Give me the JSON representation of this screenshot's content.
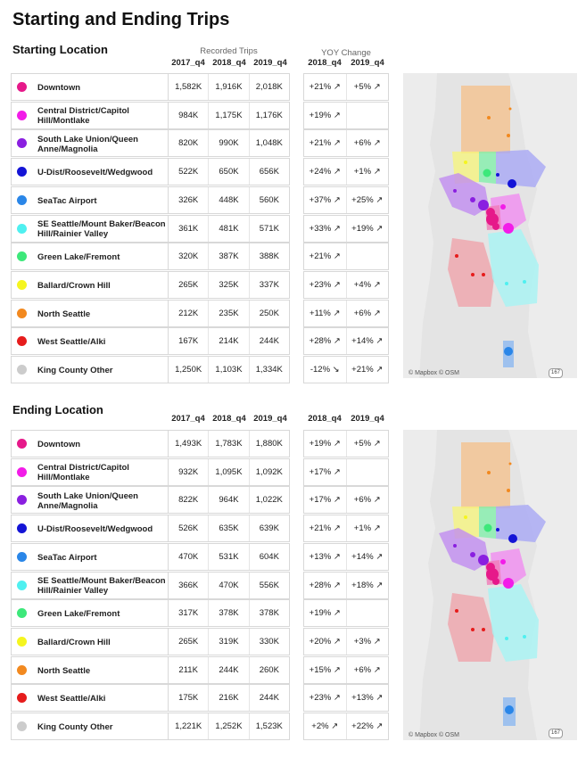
{
  "title": "Starting and Ending Trips",
  "headers": {
    "recorded": "Recorded Trips",
    "yoy": "YOY Change",
    "cols": [
      "2017_q4",
      "2018_q4",
      "2019_q4"
    ],
    "yoy_cols": [
      "2018_q4",
      "2019_q4"
    ]
  },
  "map": {
    "credit": "© Mapbox © OSM",
    "shield": "167"
  },
  "chart_data": [
    {
      "type": "table",
      "title": "Starting Location",
      "columns": [
        "2017_q4",
        "2018_q4",
        "2019_q4",
        "2018_q4",
        "2019_q4"
      ],
      "rows": [
        {
          "name": "Downtown",
          "color": "#e6198a",
          "values": [
            "1,582K",
            "1,916K",
            "2,018K"
          ],
          "yoy": [
            "+21% ↗",
            "+5% ↗"
          ]
        },
        {
          "name": "Central District/Capitol Hill/Montlake",
          "color": "#f21ce8",
          "values": [
            "984K",
            "1,175K",
            "1,176K"
          ],
          "yoy": [
            "+19% ↗",
            ""
          ]
        },
        {
          "name": "South Lake Union/Queen Anne/Magnolia",
          "color": "#8a1fe0",
          "values": [
            "820K",
            "990K",
            "1,048K"
          ],
          "yoy": [
            "+21% ↗",
            "+6% ↗"
          ]
        },
        {
          "name": "U-Dist/Roosevelt/Wedgwood",
          "color": "#1414d6",
          "values": [
            "522K",
            "650K",
            "656K"
          ],
          "yoy": [
            "+24% ↗",
            "+1% ↗"
          ]
        },
        {
          "name": "SeaTac Airport",
          "color": "#2a86e8",
          "values": [
            "326K",
            "448K",
            "560K"
          ],
          "yoy": [
            "+37% ↗",
            "+25% ↗"
          ]
        },
        {
          "name": "SE Seattle/Mount Baker/Beacon Hill/Rainier Valley",
          "color": "#4ff0f0",
          "values": [
            "361K",
            "481K",
            "571K"
          ],
          "yoy": [
            "+33% ↗",
            "+19% ↗"
          ]
        },
        {
          "name": "Green Lake/Fremont",
          "color": "#3de87a",
          "values": [
            "320K",
            "387K",
            "388K"
          ],
          "yoy": [
            "+21% ↗",
            ""
          ]
        },
        {
          "name": "Ballard/Crown Hill",
          "color": "#f5f51f",
          "values": [
            "265K",
            "325K",
            "337K"
          ],
          "yoy": [
            "+23% ↗",
            "+4% ↗"
          ]
        },
        {
          "name": "North Seattle",
          "color": "#f2891f",
          "values": [
            "212K",
            "235K",
            "250K"
          ],
          "yoy": [
            "+11% ↗",
            "+6% ↗"
          ]
        },
        {
          "name": "West Seattle/Alki",
          "color": "#e61c1c",
          "values": [
            "167K",
            "214K",
            "244K"
          ],
          "yoy": [
            "+28% ↗",
            "+14% ↗"
          ]
        },
        {
          "name": "King County Other",
          "color": "#cccccc",
          "values": [
            "1,250K",
            "1,103K",
            "1,334K"
          ],
          "yoy": [
            "-12% ↘",
            "+21% ↗"
          ]
        }
      ]
    },
    {
      "type": "table",
      "title": "Ending Location",
      "columns": [
        "2017_q4",
        "2018_q4",
        "2019_q4",
        "2018_q4",
        "2019_q4"
      ],
      "rows": [
        {
          "name": "Downtown",
          "color": "#e6198a",
          "values": [
            "1,493K",
            "1,783K",
            "1,880K"
          ],
          "yoy": [
            "+19% ↗",
            "+5% ↗"
          ]
        },
        {
          "name": "Central District/Capitol Hill/Montlake",
          "color": "#f21ce8",
          "values": [
            "932K",
            "1,095K",
            "1,092K"
          ],
          "yoy": [
            "+17% ↗",
            ""
          ]
        },
        {
          "name": "South Lake Union/Queen Anne/Magnolia",
          "color": "#8a1fe0",
          "values": [
            "822K",
            "964K",
            "1,022K"
          ],
          "yoy": [
            "+17% ↗",
            "+6% ↗"
          ]
        },
        {
          "name": "U-Dist/Roosevelt/Wedgwood",
          "color": "#1414d6",
          "values": [
            "526K",
            "635K",
            "639K"
          ],
          "yoy": [
            "+21% ↗",
            "+1% ↗"
          ]
        },
        {
          "name": "SeaTac Airport",
          "color": "#2a86e8",
          "values": [
            "470K",
            "531K",
            "604K"
          ],
          "yoy": [
            "+13% ↗",
            "+14% ↗"
          ]
        },
        {
          "name": "SE Seattle/Mount Baker/Beacon Hill/Rainier Valley",
          "color": "#4ff0f0",
          "values": [
            "366K",
            "470K",
            "556K"
          ],
          "yoy": [
            "+28% ↗",
            "+18% ↗"
          ]
        },
        {
          "name": "Green Lake/Fremont",
          "color": "#3de87a",
          "values": [
            "317K",
            "378K",
            "378K"
          ],
          "yoy": [
            "+19% ↗",
            ""
          ]
        },
        {
          "name": "Ballard/Crown Hill",
          "color": "#f5f51f",
          "values": [
            "265K",
            "319K",
            "330K"
          ],
          "yoy": [
            "+20% ↗",
            "+3% ↗"
          ]
        },
        {
          "name": "North Seattle",
          "color": "#f2891f",
          "values": [
            "211K",
            "244K",
            "260K"
          ],
          "yoy": [
            "+15% ↗",
            "+6% ↗"
          ]
        },
        {
          "name": "West Seattle/Alki",
          "color": "#e61c1c",
          "values": [
            "175K",
            "216K",
            "244K"
          ],
          "yoy": [
            "+23% ↗",
            "+13% ↗"
          ]
        },
        {
          "name": "King County Other",
          "color": "#cccccc",
          "values": [
            "1,221K",
            "1,252K",
            "1,523K"
          ],
          "yoy": [
            "+2% ↗",
            "+22% ↗"
          ]
        }
      ]
    }
  ]
}
